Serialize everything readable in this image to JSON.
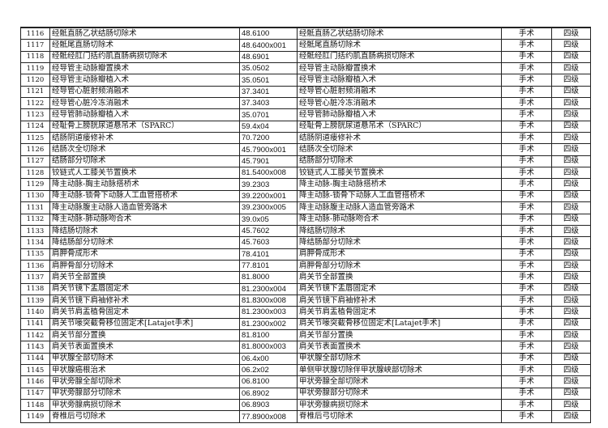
{
  "rows": [
    [
      "1116",
      "经骶直肠乙状结肠切除术",
      "48.6100",
      "经骶直肠乙状结肠切除术",
      "手术",
      "四级"
    ],
    [
      "1117",
      "经骶尾直肠切除术",
      "48.6400x001",
      "经骶尾直肠切除术",
      "手术",
      "四级"
    ],
    [
      "1118",
      "经骶经肛门括约肌直肠病损切除术",
      "48.6901",
      "经骶经肛门括约肌直肠病损切除术",
      "手术",
      "四级"
    ],
    [
      "1119",
      "经导管主动脉瓣置换术",
      "35.0502",
      "经导管主动脉瓣置换术",
      "手术",
      "四级"
    ],
    [
      "1120",
      "经导管主动脉瓣植入术",
      "35.0501",
      "经导管主动脉瓣植入术",
      "手术",
      "四级"
    ],
    [
      "1121",
      "经导管心脏射频消融术",
      "37.3401",
      "经导管心脏射频消融术",
      "手术",
      "四级"
    ],
    [
      "1122",
      "经导管心脏冷冻消融术",
      "37.3403",
      "经导管心脏冷冻消融术",
      "手术",
      "四级"
    ],
    [
      "1123",
      "经导管肺动脉瓣植入术",
      "35.0701",
      "经导管肺动脉瓣植入术",
      "手术",
      "四级"
    ],
    [
      "1124",
      "经耻骨上膀胱尿道悬吊术（SPARC）",
      "59.4x04",
      "经耻骨上膀胱尿道悬吊术（SPARC）",
      "手术",
      "四级"
    ],
    [
      "1125",
      "结肠阴道瘘修补术",
      "70.7200",
      "结肠阴道瘘修补术",
      "手术",
      "四级"
    ],
    [
      "1126",
      "结肠次全切除术",
      "45.7900x001",
      "结肠次全切除术",
      "手术",
      "四级"
    ],
    [
      "1127",
      "结肠部分切除术",
      "45.7901",
      "结肠部分切除术",
      "手术",
      "四级"
    ],
    [
      "1128",
      "铰链式人工膝关节置换术",
      "81.5400x008",
      "铰链式人工膝关节置换术",
      "手术",
      "四级"
    ],
    [
      "1129",
      "降主动脉-胸主动脉搭桥术",
      "39.2303",
      "降主动脉-胸主动脉搭桥术",
      "手术",
      "四级"
    ],
    [
      "1130",
      "降主动脉-锁骨下动脉人工血管搭桥术",
      "39.2200x001",
      "降主动脉-锁骨下动脉人工血管搭桥术",
      "手术",
      "四级"
    ],
    [
      "1131",
      "降主动脉腹主动脉人造血管旁路术",
      "39.2300x005",
      "降主动脉腹主动脉人造血管旁路术",
      "手术",
      "四级"
    ],
    [
      "1132",
      "降主动脉-肺动脉吻合术",
      "39.0x05",
      "降主动脉-肺动脉吻合术",
      "手术",
      "四级"
    ],
    [
      "1133",
      "降结肠切除术",
      "45.7602",
      "降结肠切除术",
      "手术",
      "四级"
    ],
    [
      "1134",
      "降结肠部分切除术",
      "45.7603",
      "降结肠部分切除术",
      "手术",
      "四级"
    ],
    [
      "1135",
      "肩胛骨成形术",
      "78.4101",
      "肩胛骨成形术",
      "手术",
      "四级"
    ],
    [
      "1136",
      "肩胛骨部分切除术",
      "77.8101",
      "肩胛骨部分切除术",
      "手术",
      "四级"
    ],
    [
      "1137",
      "肩关节全部置换",
      "81.8000",
      "肩关节全部置换",
      "手术",
      "四级"
    ],
    [
      "1138",
      "肩关节镜下盂唇固定术",
      "81.2300x004",
      "肩关节镜下盂唇固定术",
      "手术",
      "四级"
    ],
    [
      "1139",
      "肩关节镜下肩袖修补术",
      "81.8300x008",
      "肩关节镜下肩袖修补术",
      "手术",
      "四级"
    ],
    [
      "1140",
      "肩关节肩盂植骨固定术",
      "81.2300x003",
      "肩关节肩盂植骨固定术",
      "手术",
      "四级"
    ],
    [
      "1141",
      "肩关节喙突截骨移位固定术[Latajet手术]",
      "81.2300x002",
      "肩关节喙突截骨移位固定术[Latajet手术]",
      "手术",
      "四级"
    ],
    [
      "1142",
      "肩关节部分置换",
      "81.8100",
      "肩关节部分置换",
      "手术",
      "四级"
    ],
    [
      "1143",
      "肩关节表面置换术",
      "81.8000x003",
      "肩关节表面置换术",
      "手术",
      "四级"
    ],
    [
      "1144",
      "甲状腺全部切除术",
      "06.4x00",
      "甲状腺全部切除术",
      "手术",
      "四级"
    ],
    [
      "1145",
      "甲状腺癌根治术",
      "06.2x02",
      "单侧甲状腺切除伴甲状腺峡部切除术",
      "手术",
      "四级"
    ],
    [
      "1146",
      "甲状旁腺全部切除术",
      "06.8100",
      "甲状旁腺全部切除术",
      "手术",
      "四级"
    ],
    [
      "1147",
      "甲状旁腺部分切除术",
      "06.8902",
      "甲状旁腺部分切除术",
      "手术",
      "四级"
    ],
    [
      "1148",
      "甲状旁腺病损切除术",
      "06.8903",
      "甲状旁腺病损切除术",
      "手术",
      "四级"
    ],
    [
      "1149",
      "脊椎后弓切除术",
      "77.8900x008",
      "脊椎后弓切除术",
      "手术",
      "四级"
    ]
  ]
}
